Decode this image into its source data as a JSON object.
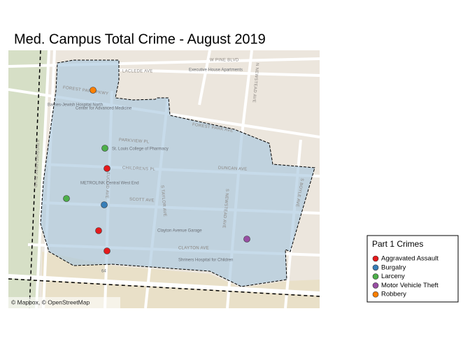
{
  "title": "Med. Campus Total Crime - August 2019",
  "legend": {
    "title": "Part 1 Crimes",
    "items": [
      {
        "name": "Aggravated Assault",
        "color": "#e41a1c"
      },
      {
        "name": "Burgalry",
        "color": "#377eb8"
      },
      {
        "name": "Larceny",
        "color": "#4daf4a"
      },
      {
        "name": "Motor Vehicle Theft",
        "color": "#984ea3"
      },
      {
        "name": "Robbery",
        "color": "#ff7f00"
      }
    ]
  },
  "map": {
    "attribution": "© Mapbox, © OpenStreetMap",
    "labels": [
      "FOREST PARK PKWY",
      "LACLEDE AVE",
      "W PINE BLVD",
      "FOREST PARK AVE",
      "DUNCAN AVE",
      "CHILDRENS PL",
      "SCOTT AVE",
      "CLAYTON AVE",
      "PARKVIEW PL",
      "S TAYLOR AVE",
      "S NEWSTEAD AVE",
      "S BOYLE AVE",
      "N NEWSTEAD AVE",
      "S EUCLID AVE",
      "KINGSHIGHWAY BLVD",
      "St. Louis College of Pharmacy",
      "Shriners Hospital for Children",
      "Clayton Avenue Garage",
      "Center for Advanced Medicine",
      "Barnes-Jewish Hospital North",
      "Executive House Apartments",
      "METROLINK Central West End",
      "64"
    ]
  }
}
